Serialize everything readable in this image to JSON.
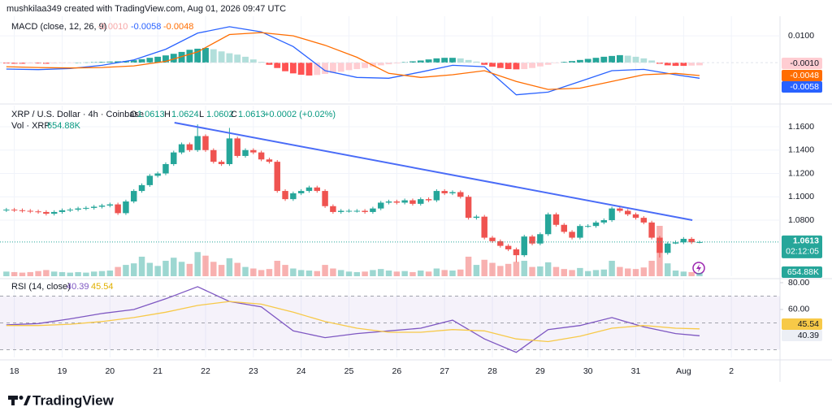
{
  "header": "mushkilaa349 created with TradingView.com, Aug 01, 2026 09:47 UTC",
  "footer": "TradingView",
  "chart_data": [
    {
      "type": "macd",
      "title": "MACD (close, 12, 26, 9)",
      "ylim": [
        -0.0145,
        0.0173
      ],
      "yticks": [
        {
          "value": 0.01,
          "label": "0.0100"
        }
      ],
      "histogram": {
        "values": [
          -0.0003,
          -0.0004,
          -0.0004,
          -0.0003,
          -0.0003,
          -0.0004,
          -0.0003,
          -0.0002,
          -0.0001,
          0,
          0.0001,
          0.0002,
          0.0003,
          0.0004,
          0.0005,
          0.0006,
          0.0009,
          0.0013,
          0.0018,
          0.0022,
          0.0027,
          0.0033,
          0.004,
          0.0048,
          0.0052,
          0.0055,
          0.005,
          0.0042,
          0.0035,
          0.003,
          0.0022,
          0.0012,
          0.0003,
          -0.0008,
          -0.002,
          -0.0032,
          -0.004,
          -0.0045,
          -0.0048,
          -0.0046,
          -0.0042,
          -0.0038,
          -0.0034,
          -0.0028,
          -0.0024,
          -0.002,
          -0.0015,
          -0.001,
          -0.0006,
          -0.0003,
          0.0002,
          0.0005,
          0.0008,
          0.0012,
          0.0016,
          0.0018,
          0.0018,
          0.0016,
          0.001,
          0.0004,
          -0.0008,
          -0.0015,
          -0.002,
          -0.0024,
          -0.0025,
          -0.0024,
          -0.002,
          -0.0014,
          -0.0008,
          -0.0002,
          0.0003,
          0.0006,
          0.001,
          0.0014,
          0.0018,
          0.0022,
          0.0025,
          0.0028,
          0.0026,
          0.0022,
          0.0016,
          0.0008,
          -0.0004,
          -0.001,
          -0.0012,
          -0.0012,
          -0.0011,
          -0.001
        ],
        "value_labels": [
          null,
          null,
          null,
          null,
          null,
          null,
          null,
          null,
          null,
          null,
          null,
          null,
          null,
          null,
          null,
          null,
          null,
          null,
          null,
          null,
          null,
          null,
          null,
          null,
          null,
          null,
          null,
          null,
          null,
          null,
          null,
          null,
          null,
          null,
          null,
          null,
          null,
          null,
          null,
          null,
          null,
          null,
          null,
          null,
          null,
          null,
          null,
          null,
          null,
          null,
          null,
          null,
          null,
          null,
          null,
          null,
          null,
          null,
          null,
          null,
          null,
          null,
          null,
          null,
          null,
          null,
          null,
          null,
          null,
          null,
          null,
          null,
          null,
          null,
          null,
          null,
          null,
          null,
          null,
          null,
          null,
          null,
          null,
          null,
          null,
          null,
          null,
          "-0.0010"
        ]
      },
      "series": [
        {
          "color": "#2962ff",
          "x": [
            0,
            4,
            8,
            12,
            16,
            20,
            24,
            28,
            32,
            36,
            40,
            44,
            48,
            52,
            56,
            60,
            64,
            68,
            72,
            76,
            80,
            84,
            87
          ],
          "values": [
            -0.0024,
            -0.0026,
            -0.0022,
            -0.001,
            0.001,
            0.005,
            0.011,
            0.0134,
            0.0115,
            0.006,
            -0.003,
            -0.0055,
            -0.0058,
            -0.0035,
            -0.001,
            -0.0015,
            -0.012,
            -0.011,
            -0.007,
            -0.003,
            -0.0025,
            -0.0045,
            -0.0058
          ]
        },
        {
          "color": "#ff6d00",
          "x": [
            0,
            4,
            8,
            12,
            16,
            20,
            24,
            28,
            32,
            36,
            40,
            44,
            48,
            52,
            56,
            60,
            64,
            68,
            72,
            76,
            80,
            84,
            87
          ],
          "values": [
            -0.0015,
            -0.0018,
            -0.002,
            -0.0018,
            -0.0012,
            0.0005,
            0.004,
            0.0105,
            0.0112,
            0.01,
            0.0065,
            0.002,
            -0.004,
            -0.0055,
            -0.0045,
            -0.003,
            -0.007,
            -0.01,
            -0.0095,
            -0.007,
            -0.0045,
            -0.004,
            -0.0048
          ]
        }
      ]
    },
    {
      "type": "candlestick",
      "title": "XRP / U.S. Dollar · 4h · Coinbase",
      "ohlc_letters": [
        "O",
        "H",
        "L",
        "C"
      ],
      "change": "+0.0002 (+0.02%)",
      "countdown": "02:12:05",
      "up_color": "#26a69a",
      "down_color": "#ef5350",
      "xlim": [
        -0.8,
        97.1
      ],
      "xticks": [
        {
          "value": 1,
          "label": "18"
        },
        {
          "value": 7,
          "label": "19"
        },
        {
          "value": 13,
          "label": "20"
        },
        {
          "value": 19,
          "label": "21"
        },
        {
          "value": 25,
          "label": "22"
        },
        {
          "value": 31,
          "label": "23"
        },
        {
          "value": 37,
          "label": "24"
        },
        {
          "value": 43,
          "label": "25"
        },
        {
          "value": 49,
          "label": "26"
        },
        {
          "value": 55,
          "label": "27"
        },
        {
          "value": 61,
          "label": "28"
        },
        {
          "value": 67,
          "label": "29"
        },
        {
          "value": 73,
          "label": "30"
        },
        {
          "value": 79,
          "label": "31"
        },
        {
          "value": 85,
          "label": "Aug"
        },
        {
          "value": 91,
          "label": "2"
        }
      ],
      "ylim": [
        1.032,
        1.1781
      ],
      "yticks": [
        {
          "value": 1.16,
          "label": "1.1600"
        },
        {
          "value": 1.14,
          "label": "1.1400"
        },
        {
          "value": 1.12,
          "label": "1.1200"
        },
        {
          "value": 1.1,
          "label": "1.1000"
        },
        {
          "value": 1.08,
          "label": "1.0800"
        }
      ],
      "open": [
        1.0885,
        1.089,
        1.0885,
        1.088,
        1.0875,
        1.087,
        1.0855,
        1.087,
        1.0885,
        1.089,
        1.09,
        1.0905,
        1.0915,
        1.0925,
        1.0935,
        1.086,
        1.096,
        1.105,
        1.11,
        1.118,
        1.12,
        1.128,
        1.138,
        1.145,
        1.14,
        1.152,
        1.14,
        1.13,
        1.128,
        1.15,
        1.135,
        1.14,
        1.138,
        1.132,
        1.13,
        1.105,
        1.098,
        1.103,
        1.105,
        1.108,
        1.105,
        1.092,
        1.087,
        1.088,
        1.088,
        1.088,
        1.087,
        1.09,
        1.095,
        1.096,
        1.095,
        1.097,
        1.094,
        1.098,
        1.097,
        1.105,
        1.103,
        1.104,
        1.1,
        1.082,
        1.083,
        1.065,
        1.062,
        1.058,
        1.055,
        1.05,
        1.066,
        1.06,
        1.068,
        1.085,
        1.076,
        1.07,
        1.065,
        1.075,
        1.075,
        1.078,
        1.08,
        1.09,
        1.088,
        1.085,
        1.082,
        1.078,
        1.065,
        1.052,
        1.06,
        1.061,
        1.064,
        1.0613
      ],
      "high": [
        1.0905,
        1.0905,
        1.09,
        1.0895,
        1.089,
        1.0885,
        1.0885,
        1.09,
        1.0905,
        1.0915,
        1.092,
        1.093,
        1.094,
        1.095,
        1.095,
        1.0975,
        1.1065,
        1.1115,
        1.1195,
        1.1215,
        1.1295,
        1.1395,
        1.1465,
        1.1465,
        1.162,
        1.1535,
        1.1415,
        1.1315,
        1.159,
        1.1515,
        1.1415,
        1.1415,
        1.1395,
        1.1335,
        1.1315,
        1.1065,
        1.1045,
        1.1065,
        1.1095,
        1.1095,
        1.1065,
        1.0935,
        1.0895,
        1.0895,
        1.0895,
        1.0895,
        1.0915,
        1.0965,
        1.0975,
        1.0975,
        1.0985,
        1.0985,
        1.0995,
        1.0995,
        1.1065,
        1.1065,
        1.1055,
        1.1055,
        1.1015,
        1.0845,
        1.0845,
        1.0665,
        1.0635,
        1.0595,
        1.0565,
        1.0675,
        1.0675,
        1.0695,
        1.0865,
        1.0865,
        1.0775,
        1.0715,
        1.0765,
        1.0765,
        1.0795,
        1.0815,
        1.0915,
        1.0915,
        1.0895,
        1.0865,
        1.0835,
        1.0795,
        1.0665,
        1.0615,
        1.0625,
        1.0655,
        1.0655,
        1.0624
      ],
      "low": [
        1.087,
        1.087,
        1.0865,
        1.086,
        1.0855,
        1.084,
        1.084,
        1.0855,
        1.087,
        1.0875,
        1.0885,
        1.089,
        1.09,
        1.091,
        1.0845,
        1.0845,
        1.0945,
        1.1035,
        1.1085,
        1.1165,
        1.1185,
        1.1265,
        1.1365,
        1.1385,
        1.1385,
        1.1385,
        1.1285,
        1.1265,
        1.1265,
        1.1335,
        1.1335,
        1.1365,
        1.1305,
        1.1285,
        1.1035,
        1.0965,
        1.0965,
        1.1015,
        1.1035,
        1.1035,
        1.0905,
        1.0855,
        1.0855,
        1.0865,
        1.0865,
        1.0855,
        1.0855,
        1.0885,
        1.0935,
        1.0935,
        1.0935,
        1.0925,
        1.0925,
        1.0955,
        1.0955,
        1.1015,
        1.1015,
        1.0985,
        1.0805,
        1.0805,
        1.0635,
        1.0605,
        1.0565,
        1.0535,
        1.044,
        1.0485,
        1.0585,
        1.0585,
        1.0665,
        1.0745,
        1.0685,
        1.0635,
        1.0635,
        1.0735,
        1.0735,
        1.0765,
        1.0785,
        1.0865,
        1.0835,
        1.0805,
        1.0765,
        1.0635,
        1.048,
        1.0505,
        1.0595,
        1.0595,
        1.0596,
        1.0602
      ],
      "close": [
        1.089,
        1.0885,
        1.088,
        1.0875,
        1.087,
        1.0855,
        1.087,
        1.0885,
        1.089,
        1.09,
        1.0905,
        1.0915,
        1.0925,
        1.0935,
        1.086,
        1.096,
        1.105,
        1.11,
        1.118,
        1.12,
        1.128,
        1.138,
        1.145,
        1.14,
        1.152,
        1.14,
        1.13,
        1.128,
        1.15,
        1.135,
        1.14,
        1.138,
        1.132,
        1.13,
        1.105,
        1.098,
        1.103,
        1.105,
        1.108,
        1.105,
        1.092,
        1.087,
        1.088,
        1.088,
        1.088,
        1.087,
        1.09,
        1.095,
        1.096,
        1.095,
        1.097,
        1.094,
        1.098,
        1.097,
        1.105,
        1.103,
        1.104,
        1.1,
        1.082,
        1.083,
        1.065,
        1.062,
        1.058,
        1.055,
        1.05,
        1.066,
        1.06,
        1.068,
        1.085,
        1.076,
        1.07,
        1.065,
        1.075,
        1.075,
        1.078,
        1.08,
        1.09,
        1.088,
        1.085,
        1.082,
        1.078,
        1.065,
        1.052,
        1.06,
        1.061,
        1.064,
        1.0611,
        1.0613
      ],
      "volume": {
        "title": "Vol · XRP",
        "values": [
          900,
          800,
          700,
          800,
          1000,
          1200,
          900,
          800,
          700,
          800,
          700,
          900,
          1000,
          1100,
          1800,
          2200,
          2500,
          3800,
          2600,
          2000,
          3000,
          3600,
          2800,
          2400,
          4700,
          4000,
          2800,
          2200,
          3500,
          2600,
          1800,
          1500,
          1200,
          1400,
          3000,
          2200,
          1500,
          1200,
          1100,
          1000,
          2200,
          1500,
          1200,
          900,
          800,
          900,
          1200,
          1400,
          1100,
          900,
          1000,
          800,
          1100,
          900,
          1500,
          1200,
          1100,
          1300,
          3800,
          2200,
          3200,
          2600,
          2000,
          2400,
          2800,
          3000,
          1800,
          1900,
          2700,
          1800,
          1400,
          1200,
          1600,
          1000,
          1200,
          1300,
          3000,
          1800,
          1500,
          1400,
          1700,
          3000,
          9800,
          2500,
          1100,
          900,
          800,
          654.88
        ],
        "value_labels": [
          null,
          null,
          null,
          null,
          null,
          null,
          null,
          null,
          null,
          null,
          null,
          null,
          null,
          null,
          null,
          null,
          null,
          null,
          null,
          null,
          null,
          null,
          null,
          null,
          null,
          null,
          null,
          null,
          null,
          null,
          null,
          null,
          null,
          null,
          null,
          null,
          null,
          null,
          null,
          null,
          null,
          null,
          null,
          null,
          null,
          null,
          null,
          null,
          null,
          null,
          null,
          null,
          null,
          null,
          null,
          null,
          null,
          null,
          null,
          null,
          null,
          null,
          null,
          null,
          null,
          null,
          null,
          null,
          null,
          null,
          null,
          null,
          null,
          null,
          null,
          null,
          null,
          null,
          null,
          null,
          null,
          null,
          null,
          null,
          null,
          null,
          null,
          "654.88K"
        ]
      },
      "trendline": {
        "color": "#4a6cf7",
        "x": [
          21.1,
          86.1
        ],
        "values": [
          1.1635,
          1.08
        ]
      }
    },
    {
      "type": "rsi",
      "title": "RSI (14, close)",
      "ylim": [
        24.2,
        81.8
      ],
      "yticks": [
        {
          "value": 80,
          "label": "80.00"
        },
        {
          "value": 60,
          "label": "60.00"
        }
      ],
      "levels": [
        70,
        50,
        30
      ],
      "series": [
        {
          "color": "#7e57c2",
          "x": [
            0,
            4,
            8,
            12,
            16,
            20,
            24,
            28,
            32,
            36,
            40,
            44,
            48,
            52,
            56,
            60,
            64,
            68,
            72,
            76,
            80,
            84,
            87
          ],
          "values": [
            48.5,
            49.5,
            53,
            57,
            60,
            68,
            77,
            66,
            62,
            44,
            39,
            42,
            44,
            46,
            52,
            38,
            28,
            45,
            48,
            54,
            47,
            42,
            40.39
          ]
        },
        {
          "color": "#f7c948",
          "x": [
            0,
            4,
            8,
            12,
            16,
            20,
            24,
            28,
            32,
            36,
            40,
            44,
            48,
            52,
            56,
            60,
            64,
            68,
            72,
            76,
            80,
            84,
            87
          ],
          "values": [
            48,
            48,
            49,
            51,
            54,
            58,
            63,
            66,
            64,
            58,
            51,
            46,
            43,
            43,
            45,
            44,
            38,
            36,
            40,
            46,
            48,
            46,
            45.54
          ]
        }
      ]
    }
  ]
}
